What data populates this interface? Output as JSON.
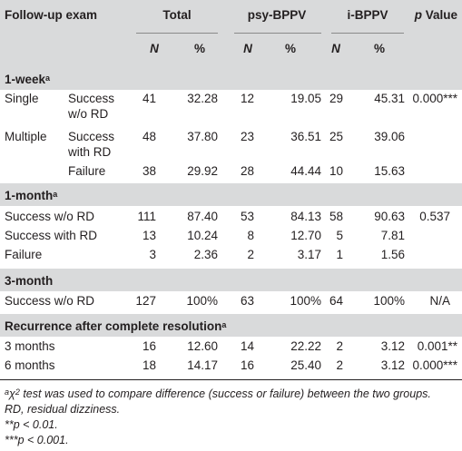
{
  "header": {
    "col0": "Follow-up exam",
    "total": "Total",
    "psy": "psy-BPPV",
    "ibppv": "i-BPPV",
    "p_label": "p",
    "p_value_word": "Value",
    "n": "N",
    "pct": "%"
  },
  "sections": {
    "week1": "1-week",
    "month1": "1-month",
    "month3": "3-month",
    "recurrence": "Recurrence after complete resolution",
    "sup_a": "a"
  },
  "rows": {
    "single": {
      "label": "Single",
      "sub1": "Success",
      "sub2": "w/o RD",
      "n1": "41",
      "p1": "32.28",
      "n2": "12",
      "p2": "19.05",
      "n3": "29",
      "p3": "45.31",
      "pv": "0.000***"
    },
    "multiple": {
      "label": "Multiple",
      "sub1": "Success",
      "sub2": "with RD",
      "n1": "48",
      "p1": "37.80",
      "n2": "23",
      "p2": "36.51",
      "n3": "25",
      "p3": "39.06"
    },
    "failure_w": {
      "sub": "Failure",
      "n1": "38",
      "p1": "29.92",
      "n2": "28",
      "p2": "44.44",
      "n3": "10",
      "p3": "15.63"
    },
    "m1_success": {
      "label": "Success w/o RD",
      "n1": "111",
      "p1": "87.40",
      "n2": "53",
      "p2": "84.13",
      "n3": "58",
      "p3": "90.63",
      "pv": "0.537"
    },
    "m1_withrd": {
      "label": "Success with RD",
      "n1": "13",
      "p1": "10.24",
      "n2": "8",
      "p2": "12.70",
      "n3": "5",
      "p3": "7.81"
    },
    "m1_failure": {
      "label": "Failure",
      "n1": "3",
      "p1": "2.36",
      "n2": "2",
      "p2": "3.17",
      "n3": "1",
      "p3": "1.56"
    },
    "m3_success": {
      "label": "Success w/o RD",
      "n1": "127",
      "p1": "100%",
      "n2": "63",
      "p2": "100%",
      "n3": "64",
      "p3": "100%",
      "pv": "N/A"
    },
    "rec3": {
      "label": "3 months",
      "n1": "16",
      "p1": "12.60",
      "n2": "14",
      "p2": "22.22",
      "n3": "2",
      "p3": "3.12",
      "pv": "0.001**"
    },
    "rec6": {
      "label": "6 months",
      "n1": "18",
      "p1": "14.17",
      "n2": "16",
      "p2": "25.40",
      "n3": "2",
      "p3": "3.12",
      "pv": "0.000***"
    }
  },
  "footnotes": {
    "f1_sup": "a",
    "f1_chi": "χ",
    "f1_sq": "2",
    "f1_text": " test was used to compare difference (success or failure) between the two groups.",
    "f2": "RD, residual dizziness.",
    "f3": "**p < 0.01.",
    "f4": "***p < 0.001."
  }
}
